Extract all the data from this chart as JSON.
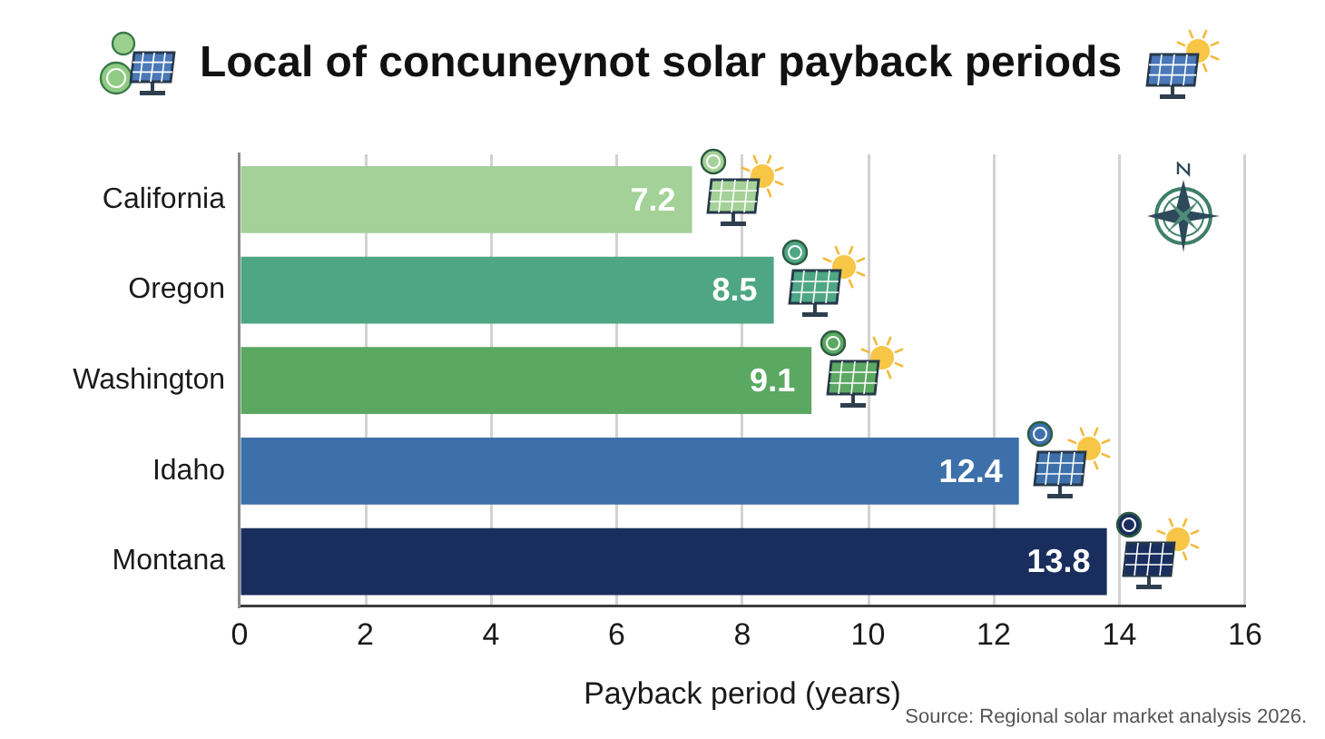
{
  "chart_data": {
    "type": "bar",
    "orientation": "horizontal",
    "title": "Local of concuneynot solar payback periods",
    "xlabel": "Payback period (years)",
    "categories": [
      "California",
      "Oregon",
      "Washington",
      "Idaho",
      "Montana"
    ],
    "values": [
      7.2,
      8.5,
      9.1,
      12.4,
      13.8
    ],
    "colors": [
      "#a3d197",
      "#4ea685",
      "#5ba862",
      "#3d70aa",
      "#1a2e5e"
    ],
    "xlim": [
      0,
      16
    ],
    "xticks": [
      0,
      2,
      4,
      6,
      8,
      10,
      12,
      14,
      16
    ],
    "grid": "x",
    "data_labels": true,
    "annotations": [
      "Source: Regional solar market analysis 2026."
    ]
  }
}
